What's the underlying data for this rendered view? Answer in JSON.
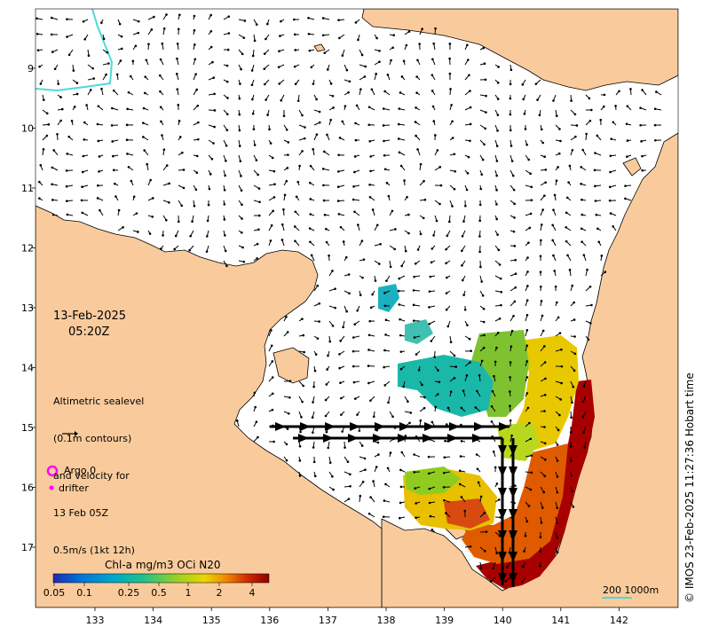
{
  "date": "13-Feb-2025",
  "time": "05:20Z",
  "sealevel_note": [
    "Altimetric sealevel",
    "(0.1m contours)",
    "and velocity for",
    "13 Feb 05Z",
    "0.5m/s (1kt 12h)"
  ],
  "legend": {
    "argo": "Argo 0",
    "drifter": "drifter"
  },
  "colorbar": {
    "title": "Chl-a mg/m3 OCi N20",
    "ticks": [
      "0.05",
      "0.1",
      "0.25",
      "0.5",
      "1",
      "2",
      "4"
    ],
    "colors": [
      "#1f2bb0",
      "#0070d8",
      "#00a8c8",
      "#22c18a",
      "#8fd02a",
      "#e8d800",
      "#f08a00",
      "#d02a00",
      "#8c0000"
    ]
  },
  "scale_bar": "200  1000m",
  "credit": "© IMOS 23-Feb-2025 11:27:36 Hobart time",
  "axes": {
    "x_ticks": [
      "133",
      "134",
      "135",
      "136",
      "137",
      "138",
      "139",
      "140",
      "141",
      "142"
    ],
    "y_ticks": [
      "9",
      "10",
      "11",
      "12",
      "13",
      "14",
      "15",
      "16",
      "17"
    ]
  },
  "colors": {
    "land": "#f9cb9c",
    "sea": "#ffffff",
    "shelf_contour": "#4dd9d9",
    "argo": "#ff00ff",
    "drifter": "#ff00ff",
    "arrow": "#000000"
  }
}
